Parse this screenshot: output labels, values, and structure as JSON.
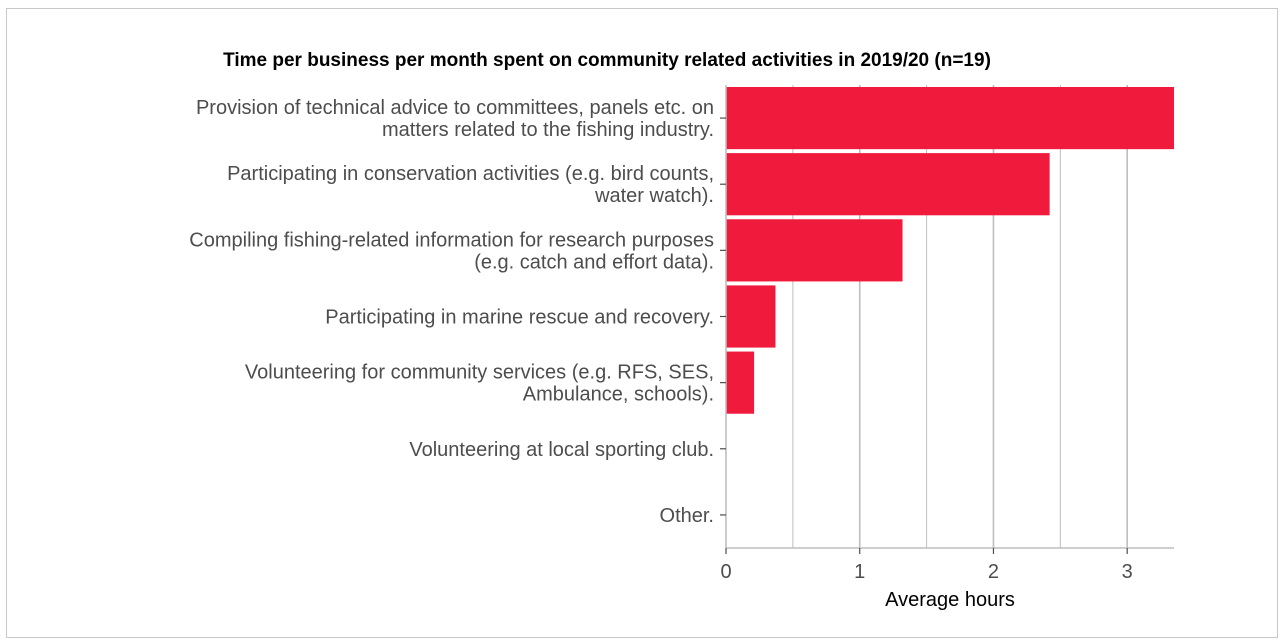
{
  "chart_data": {
    "type": "bar",
    "orientation": "horizontal",
    "title": "Time per business per month spent on community related activities in 2019/20 (n=19)",
    "xlabel": "Average hours",
    "ylabel": "",
    "xlim": [
      0,
      3.35
    ],
    "x_ticks": [
      0,
      1,
      2,
      3
    ],
    "grid": true,
    "categories": [
      [
        "Provision of technical advice to committees, panels etc. on",
        "matters related to the fishing industry."
      ],
      [
        "Participating in conservation activities (e.g. bird counts,",
        "water watch)."
      ],
      [
        "Compiling fishing-related information for research purposes",
        "(e.g. catch and effort data)."
      ],
      [
        "Participating in marine rescue and recovery."
      ],
      [
        "Volunteering for community services (e.g. RFS, SES,",
        "Ambulance, schools)."
      ],
      [
        "Volunteering at local sporting club."
      ],
      [
        "Other."
      ]
    ],
    "values": [
      3.35,
      2.42,
      1.32,
      0.37,
      0.21,
      0,
      0
    ],
    "bar_color": "#f01a3c",
    "grid_color": "#bebebe"
  }
}
